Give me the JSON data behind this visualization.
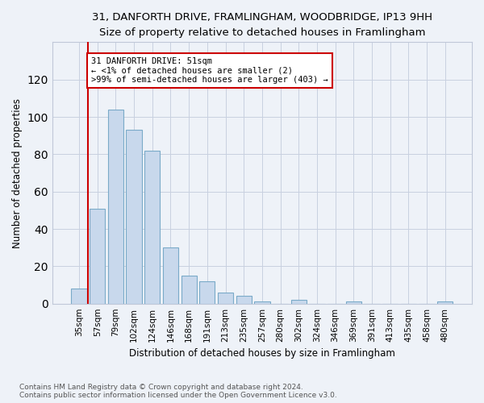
{
  "title": "31, DANFORTH DRIVE, FRAMLINGHAM, WOODBRIDGE, IP13 9HH",
  "subtitle": "Size of property relative to detached houses in Framlingham",
  "xlabel": "Distribution of detached houses by size in Framlingham",
  "ylabel": "Number of detached properties",
  "categories": [
    "35sqm",
    "57sqm",
    "79sqm",
    "102sqm",
    "124sqm",
    "146sqm",
    "168sqm",
    "191sqm",
    "213sqm",
    "235sqm",
    "257sqm",
    "280sqm",
    "302sqm",
    "324sqm",
    "346sqm",
    "369sqm",
    "391sqm",
    "413sqm",
    "435sqm",
    "458sqm",
    "480sqm"
  ],
  "values": [
    8,
    51,
    104,
    93,
    82,
    30,
    15,
    12,
    6,
    4,
    1,
    0,
    2,
    0,
    0,
    1,
    0,
    0,
    0,
    0,
    1
  ],
  "bar_color": "#c8d8ec",
  "bar_edge_color": "#7aaac8",
  "annotation_line1": "31 DANFORTH DRIVE: 51sqm",
  "annotation_line2": "← <1% of detached houses are smaller (2)",
  "annotation_line3": ">99% of semi-detached houses are larger (403) →",
  "annotation_box_edge_color": "#cc0000",
  "property_line_x": 1,
  "ylim": [
    0,
    140
  ],
  "yticks": [
    0,
    20,
    40,
    60,
    80,
    100,
    120
  ],
  "footnote": "Contains HM Land Registry data © Crown copyright and database right 2024.\nContains public sector information licensed under the Open Government Licence v3.0.",
  "bg_color": "#eef2f8",
  "plot_bg_color": "#eef2f8",
  "title_fontsize": 9.5,
  "subtitle_fontsize": 8.5,
  "xlabel_fontsize": 8.5,
  "ylabel_fontsize": 8.5,
  "annotation_fontsize": 7.5,
  "footnote_fontsize": 6.5,
  "grid_color": "#c8d0e0"
}
